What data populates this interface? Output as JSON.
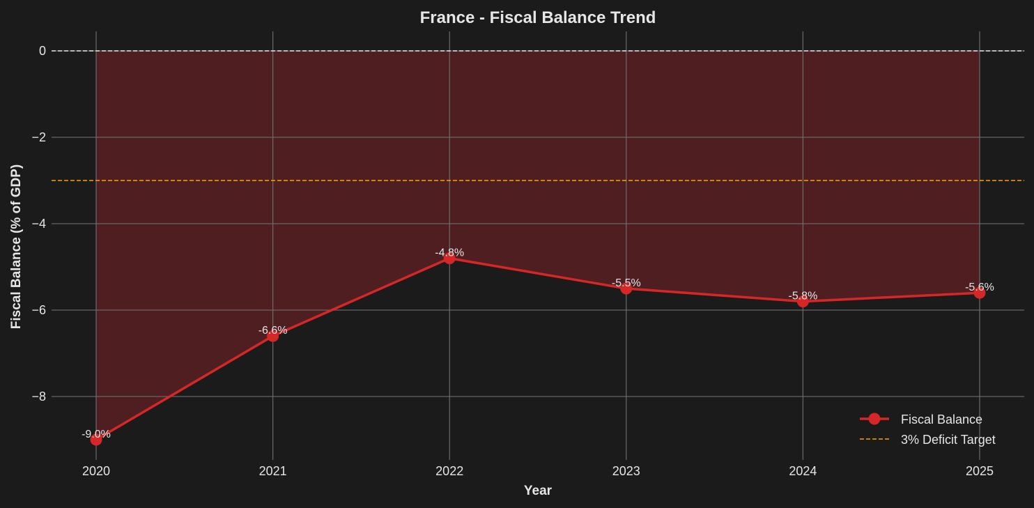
{
  "chart_data": {
    "type": "line",
    "title": "France - Fiscal Balance Trend",
    "xlabel": "Year",
    "ylabel": "Fiscal Balance (% of GDP)",
    "categories": [
      "2020",
      "2021",
      "2022",
      "2023",
      "2024",
      "2025"
    ],
    "series": [
      {
        "name": "Fiscal Balance",
        "values": [
          -9.0,
          -6.6,
          -4.8,
          -5.5,
          -5.8,
          -5.6
        ],
        "labels": [
          "-9.0%",
          "-6.6%",
          "-4.8%",
          "-5.5%",
          "-5.8%",
          "-5.6%"
        ],
        "color": "#d62728",
        "marker": "circle",
        "fill_to_zero": true,
        "fill_color": "#4f1e21"
      }
    ],
    "reference_lines": [
      {
        "name": "3% Deficit Target",
        "y": -3,
        "color": "#ffa500",
        "style": "dashed",
        "in_legend": true
      },
      {
        "name": "zero",
        "y": 0,
        "color": "#e6e6e6",
        "style": "dashed",
        "in_legend": false
      }
    ],
    "yticks": [
      0,
      -2,
      -4,
      -6,
      -8
    ],
    "ytick_labels": [
      "0",
      "−2",
      "−4",
      "−6",
      "−8"
    ],
    "ylim": [
      -9.4,
      0.45
    ],
    "xlim": [
      2019.75,
      2025.25
    ],
    "grid": true,
    "legend_position": "lower right",
    "background": "#1b1b1b"
  },
  "legend": {
    "items": [
      {
        "label": "Fiscal Balance",
        "color": "#d62728",
        "style": "line-marker"
      },
      {
        "label": "3% Deficit Target",
        "color": "#ffa500",
        "style": "dashed"
      }
    ]
  }
}
